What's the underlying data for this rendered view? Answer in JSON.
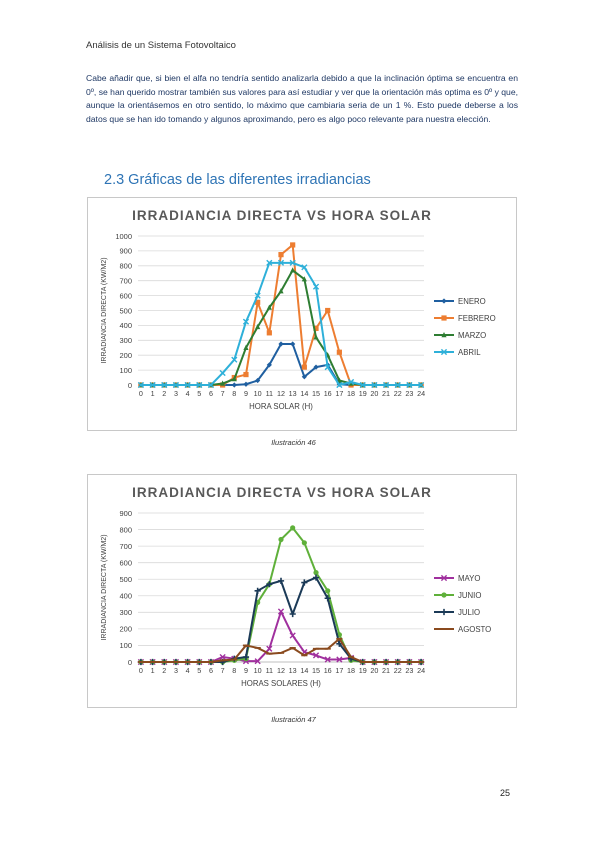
{
  "document": {
    "header": "Análisis de un Sistema Fotovoltaico",
    "intro": "Cabe añadir que, si bien el alfa no tendría sentido analizarla debido a que la inclinación óptima se encuentra en 0º, se han querido mostrar también sus valores para así estudiar y ver que la orientación más optima es 0º y que, aunque la orientásemos en otro sentido, lo máximo que cambiaria seria de un 1 %. Esto puede deberse a los datos que se han ido tomando y algunos aproximando, pero es algo poco relevante para nuestra elección.",
    "section_title": "2.3 Gráficas de las diferentes irradiancias",
    "caption_1": "Ilustración 46",
    "caption_2": "Ilustración 47",
    "page_number": "25"
  },
  "chart_data": [
    {
      "type": "line",
      "title": "IRRADIANCIA DIRECTA VS HORA SOLAR",
      "xlabel": "HORA SOLAR (H)",
      "ylabel": "IRRADIANCIA DIRECTA (KW/M2)",
      "x": [
        0,
        1,
        2,
        3,
        4,
        5,
        6,
        7,
        8,
        9,
        10,
        11,
        12,
        13,
        14,
        15,
        16,
        17,
        18,
        19,
        20,
        21,
        22,
        23,
        24
      ],
      "ylim": [
        0,
        1000
      ],
      "yticks": [
        0,
        100,
        200,
        300,
        400,
        500,
        600,
        700,
        800,
        900,
        1000
      ],
      "grid": true,
      "legend": "right",
      "series": [
        {
          "name": "ENERO",
          "color": "#1f5fa0",
          "marker": "diamond",
          "values": [
            0,
            0,
            0,
            0,
            0,
            0,
            0,
            0,
            0,
            5,
            30,
            135,
            275,
            275,
            55,
            120,
            135,
            5,
            0,
            0,
            0,
            0,
            0,
            0,
            0
          ]
        },
        {
          "name": "FEBRERO",
          "color": "#ed7d31",
          "marker": "square",
          "values": [
            0,
            0,
            0,
            0,
            0,
            0,
            0,
            0,
            50,
            70,
            555,
            350,
            875,
            940,
            120,
            380,
            500,
            220,
            0,
            0,
            0,
            0,
            0,
            0,
            0
          ]
        },
        {
          "name": "MARZO",
          "color": "#2e7d32",
          "marker": "triangle",
          "values": [
            0,
            0,
            0,
            0,
            0,
            0,
            0,
            10,
            40,
            250,
            390,
            520,
            630,
            770,
            710,
            320,
            200,
            30,
            10,
            0,
            0,
            0,
            0,
            0,
            0
          ]
        },
        {
          "name": "ABRIL",
          "color": "#2eb0d9",
          "marker": "x",
          "values": [
            0,
            0,
            0,
            0,
            0,
            0,
            0,
            80,
            170,
            425,
            600,
            820,
            820,
            820,
            790,
            660,
            120,
            0,
            20,
            0,
            0,
            0,
            0,
            0,
            0
          ]
        }
      ]
    },
    {
      "type": "line",
      "title": "IRRADIANCIA DIRECTA VS HORA SOLAR",
      "xlabel": "HORAS SOLARES (H)",
      "ylabel": "IRRADIANCIA DIRECTA (KW/M2)",
      "x": [
        0,
        1,
        2,
        3,
        4,
        5,
        6,
        7,
        8,
        9,
        10,
        11,
        12,
        13,
        14,
        15,
        16,
        17,
        18,
        19,
        20,
        21,
        22,
        23,
        24
      ],
      "ylim": [
        0,
        900
      ],
      "yticks": [
        0,
        100,
        200,
        300,
        400,
        500,
        600,
        700,
        800,
        900
      ],
      "grid": true,
      "legend": "right",
      "series": [
        {
          "name": "MAYO",
          "color": "#a0309e",
          "marker": "x",
          "values": [
            0,
            0,
            0,
            0,
            0,
            0,
            0,
            30,
            20,
            5,
            5,
            80,
            305,
            160,
            60,
            40,
            15,
            15,
            25,
            0,
            0,
            0,
            0,
            0,
            0
          ]
        },
        {
          "name": "JUNIO",
          "color": "#5fb03a",
          "marker": "circle",
          "values": [
            0,
            0,
            0,
            0,
            0,
            0,
            0,
            0,
            10,
            20,
            360,
            470,
            740,
            810,
            720,
            540,
            430,
            165,
            10,
            0,
            0,
            0,
            0,
            0,
            0
          ]
        },
        {
          "name": "JULIO",
          "color": "#1b3a57",
          "marker": "plus",
          "values": [
            0,
            0,
            0,
            0,
            0,
            0,
            0,
            0,
            20,
            30,
            430,
            470,
            490,
            290,
            480,
            510,
            385,
            110,
            20,
            0,
            0,
            0,
            0,
            0,
            0
          ]
        },
        {
          "name": "AGOSTO",
          "color": "#8a4a1e",
          "marker": "dash",
          "values": [
            0,
            0,
            0,
            0,
            0,
            0,
            0,
            10,
            15,
            100,
            85,
            50,
            55,
            85,
            40,
            80,
            80,
            140,
            30,
            0,
            0,
            0,
            0,
            0,
            0
          ]
        }
      ]
    }
  ]
}
